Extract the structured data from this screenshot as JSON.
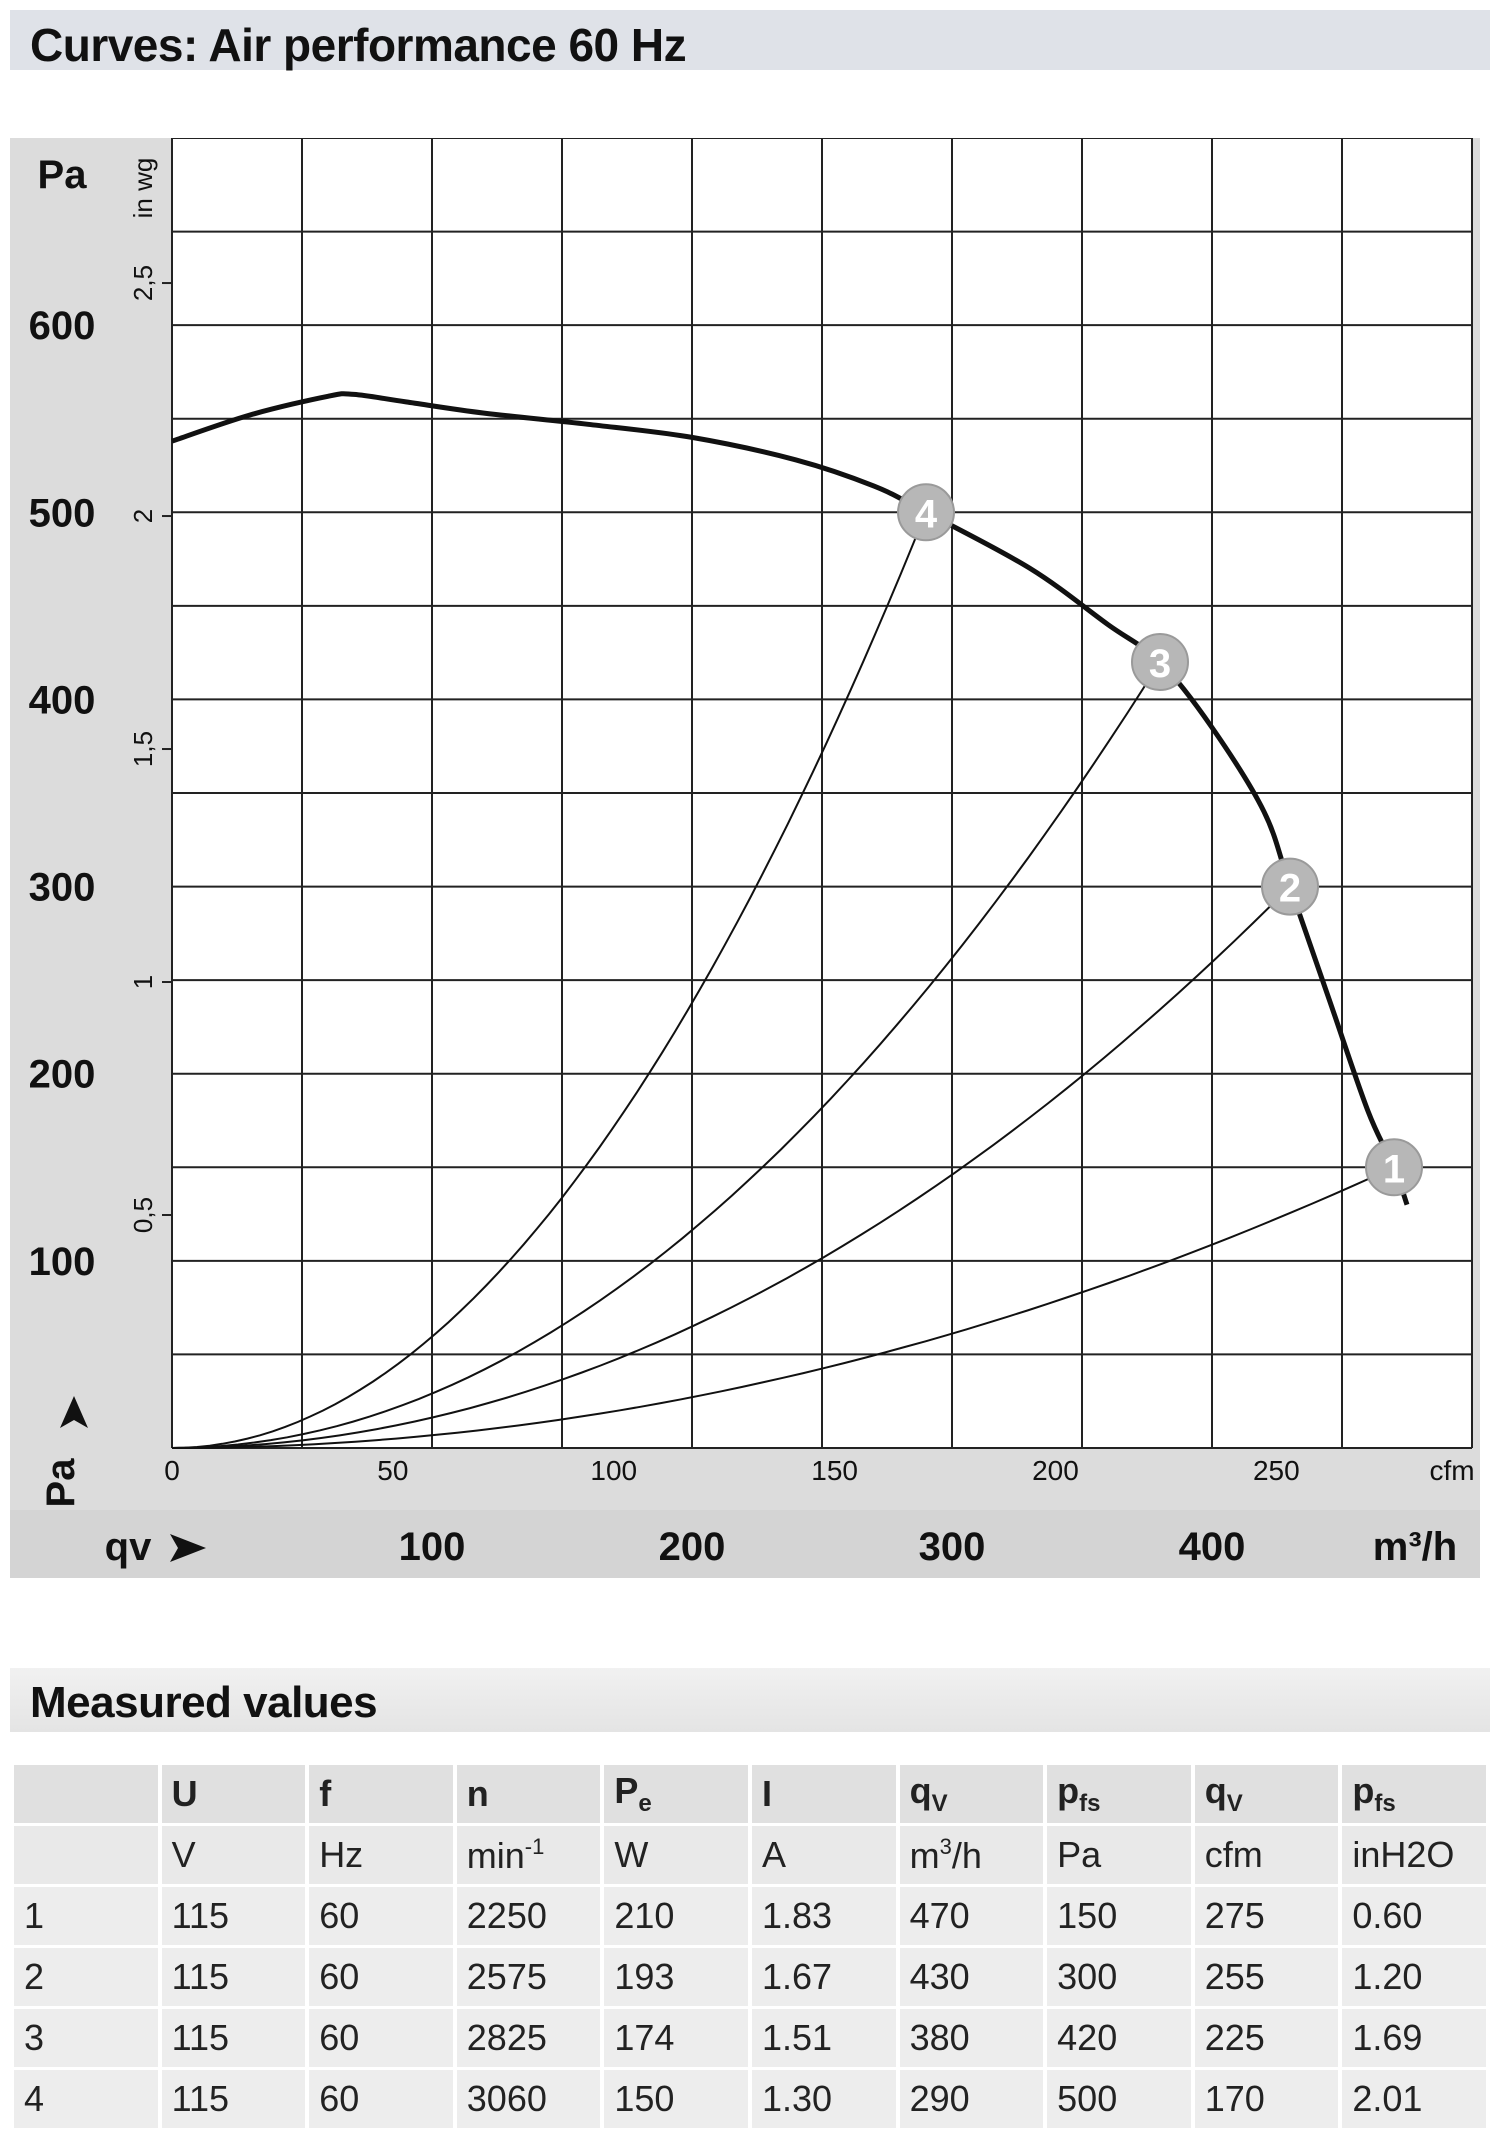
{
  "title": "Curves: Air performance 60 Hz",
  "chart_data": {
    "type": "line",
    "y_left_unit": "Pa",
    "y_left_ticks": [
      100,
      200,
      300,
      400,
      500,
      600
    ],
    "y_left_range": [
      0,
      700
    ],
    "y_inner_unit": "in wg",
    "y_inner_ticks": [
      "0,5",
      "1",
      "1,5",
      "2",
      "2,5"
    ],
    "y_axis_symbol": "Pa",
    "x_top_unit": "cfm",
    "x_top_ticks": [
      "0",
      "50",
      "100",
      "150",
      "200",
      "250"
    ],
    "x_unit": "m³/h",
    "x_ticks": [
      "100",
      "200",
      "300",
      "400"
    ],
    "x_range": [
      0,
      500
    ],
    "x_axis_symbol": "qv",
    "grid": true,
    "series": [
      {
        "role": "air performance curve",
        "points": [
          [
            0,
            538
          ],
          [
            30,
            552
          ],
          [
            60,
            562
          ],
          [
            70,
            563
          ],
          [
            90,
            559
          ],
          [
            120,
            553
          ],
          [
            160,
            547
          ],
          [
            200,
            540
          ],
          [
            240,
            528
          ],
          [
            270,
            514
          ],
          [
            290,
            500
          ],
          [
            330,
            470
          ],
          [
            360,
            440
          ],
          [
            380,
            420
          ],
          [
            400,
            385
          ],
          [
            420,
            340
          ],
          [
            430,
            300
          ],
          [
            445,
            240
          ],
          [
            460,
            180
          ],
          [
            470,
            150
          ],
          [
            475,
            130
          ]
        ]
      },
      {
        "role": "system curve 1",
        "points": [
          [
            0,
            0
          ],
          [
            470,
            150
          ]
        ]
      },
      {
        "role": "system curve 2",
        "points": [
          [
            0,
            0
          ],
          [
            430,
            300
          ]
        ]
      },
      {
        "role": "system curve 3",
        "points": [
          [
            0,
            0
          ],
          [
            380,
            420
          ]
        ]
      },
      {
        "role": "system curve 4",
        "points": [
          [
            0,
            0
          ],
          [
            290,
            500
          ]
        ]
      }
    ],
    "operating_points": [
      {
        "label": "1",
        "x": 470,
        "y": 150
      },
      {
        "label": "2",
        "x": 430,
        "y": 300
      },
      {
        "label": "3",
        "x": 380,
        "y": 420
      },
      {
        "label": "4",
        "x": 290,
        "y": 500
      }
    ]
  },
  "measured": {
    "title": "Measured values",
    "headers": [
      "",
      "U",
      "f",
      "n",
      "Pe",
      "I",
      "qv",
      "pfs",
      "qv",
      "pfs"
    ],
    "units": [
      "",
      "V",
      "Hz",
      "min-1",
      "W",
      "A",
      "m3/h",
      "Pa",
      "cfm",
      "inH2O"
    ],
    "rows": [
      [
        "1",
        "115",
        "60",
        "2250",
        "210",
        "1.83",
        "470",
        "150",
        "275",
        "0.60"
      ],
      [
        "2",
        "115",
        "60",
        "2575",
        "193",
        "1.67",
        "430",
        "300",
        "255",
        "1.20"
      ],
      [
        "3",
        "115",
        "60",
        "2825",
        "174",
        "1.51",
        "380",
        "420",
        "225",
        "1.69"
      ],
      [
        "4",
        "115",
        "60",
        "3060",
        "150",
        "1.30",
        "290",
        "500",
        "170",
        "2.01"
      ]
    ]
  }
}
